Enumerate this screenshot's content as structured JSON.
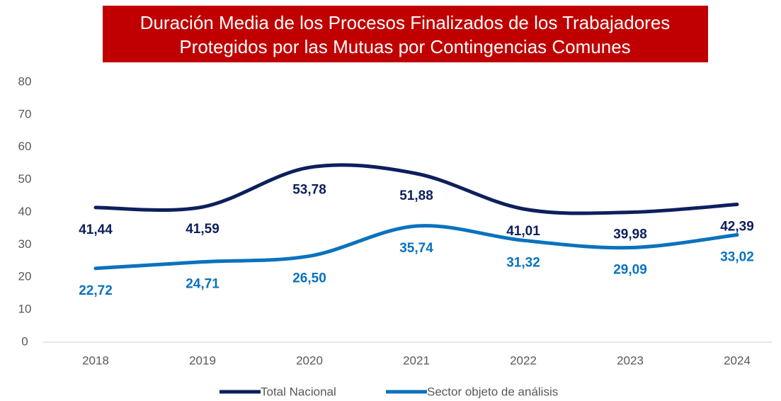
{
  "chart_data": {
    "type": "line",
    "title": [
      "Duración Media de los Procesos Finalizados de los Trabajadores",
      "Protegidos por las Mutuas por Contingencias Comunes"
    ],
    "categories": [
      "2018",
      "2019",
      "2020",
      "2021",
      "2022",
      "2023",
      "2024"
    ],
    "series": [
      {
        "name": "Total Nacional",
        "color": "#0d1f5c",
        "values": [
          41.44,
          41.59,
          53.78,
          51.88,
          41.01,
          39.98,
          42.39
        ],
        "value_labels": [
          "41,44",
          "41,59",
          "53,78",
          "51,88",
          "41,01",
          "39,98",
          "42,39"
        ]
      },
      {
        "name": "Sector objeto de análisis",
        "color": "#0a72bd",
        "values": [
          22.72,
          24.71,
          26.5,
          35.74,
          31.32,
          29.09,
          33.02
        ],
        "value_labels": [
          "22,72",
          "24,71",
          "26,50",
          "35,74",
          "31,32",
          "29,09",
          "33,02"
        ]
      }
    ],
    "ylim": [
      0,
      80
    ],
    "yticks": [
      0,
      10,
      20,
      30,
      40,
      50,
      60,
      70,
      80
    ],
    "grid": false,
    "legend": "bottom"
  }
}
